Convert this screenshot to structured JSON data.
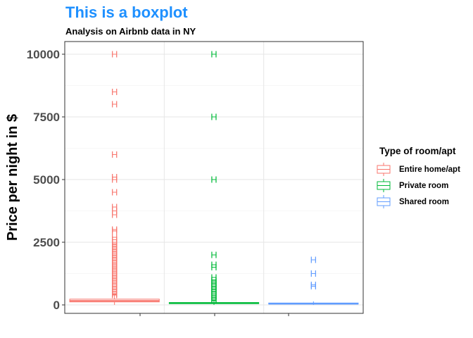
{
  "header": {
    "title": "This is a boxplot",
    "subtitle": "Analysis on Airbnb data in NY"
  },
  "colors": {
    "entire": "#F8766D",
    "private": "#00BA38",
    "shared": "#619CFF",
    "title": "#1E90FF"
  },
  "legend": {
    "title": "Type of room/apt",
    "position": "right"
  },
  "chart_data": {
    "type": "boxplot",
    "title": "This is a boxplot",
    "subtitle": "Analysis on Airbnb data in NY",
    "xlabel": "",
    "ylabel": "Price per night in $",
    "ylim": [
      -200,
      10300
    ],
    "yticks": [
      0,
      2500,
      5000,
      7500,
      10000
    ],
    "grid": true,
    "outlier_marker": "H",
    "series": [
      {
        "name": "Entire home/apt",
        "color": "#F8766D",
        "box": {
          "whisker_low": 0,
          "q1": 120,
          "median": 160,
          "q3": 229,
          "whisker_high": 390
        },
        "outliers": [
          10000,
          8500,
          8000,
          6000,
          5100,
          5000,
          4500,
          3900,
          3750,
          3600,
          3000,
          2950,
          2700,
          2600,
          2500,
          2450,
          2400,
          2350,
          2300,
          2250,
          2200,
          2150,
          2100,
          2050,
          2000,
          1950,
          1900,
          1850,
          1800,
          1750,
          1700,
          1650,
          1600,
          1550,
          1500,
          1450,
          1400,
          1350,
          1300,
          1250,
          1200,
          1150,
          1100,
          1050,
          1000,
          950,
          900,
          850,
          800,
          750,
          700,
          650,
          600,
          550,
          500,
          450,
          420,
          400
        ]
      },
      {
        "name": "Private room",
        "color": "#00BA38",
        "box": {
          "whisker_low": 0,
          "q1": 50,
          "median": 70,
          "q3": 95,
          "whisker_high": 162
        },
        "outliers": [
          10000,
          7500,
          5000,
          2000,
          1600,
          1500,
          1100,
          1000,
          950,
          900,
          850,
          800,
          750,
          700,
          650,
          600,
          550,
          500,
          450,
          400,
          350,
          300,
          250,
          200,
          170
        ]
      },
      {
        "name": "Shared room",
        "color": "#619CFF",
        "box": {
          "whisker_low": 0,
          "q1": 33,
          "median": 45,
          "q3": 75,
          "whisker_high": 140
        },
        "outliers": [
          1800,
          1250,
          800,
          750
        ]
      }
    ]
  }
}
